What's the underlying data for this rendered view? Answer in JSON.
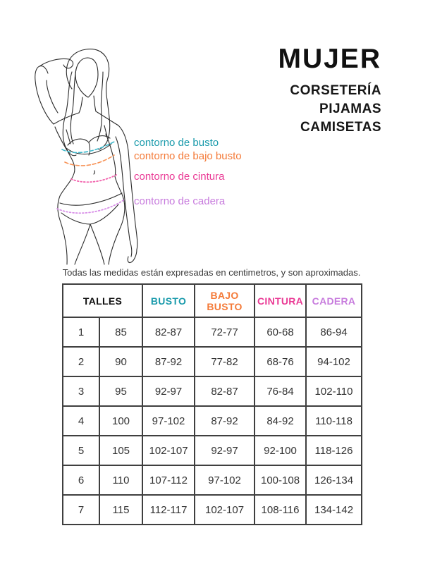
{
  "header": {
    "title": "MUJER",
    "subtitles": [
      "CORSETERÍA",
      "PIJAMAS",
      "CAMISETAS"
    ]
  },
  "figure": {
    "description": "line drawing of woman in underwear with measurement lines",
    "measurements": [
      {
        "label": "contorno de busto",
        "color": "#199aab",
        "line_color": "#3eb8cb"
      },
      {
        "label": "contorno de bajo busto",
        "color": "#f47a38",
        "line_color": "#f79357"
      },
      {
        "label": "contorno de cintura",
        "color": "#ea3a95",
        "line_color": "#f263ad"
      },
      {
        "label": "contorno de cadera",
        "color": "#c77bdd",
        "line_color": "#d88fe8"
      }
    ]
  },
  "note": "Todas las medidas están expresadas en centimetros, y son aproximadas.",
  "table": {
    "headers": [
      {
        "label": "TALLES",
        "color": "#111111",
        "colspan": 2
      },
      {
        "label": "BUSTO",
        "color": "#199aab",
        "colspan": 1
      },
      {
        "label": "BAJO BUSTO",
        "color": "#f47a38",
        "colspan": 1
      },
      {
        "label": "CINTURA",
        "color": "#ea3a95",
        "colspan": 1
      },
      {
        "label": "CADERA",
        "color": "#c77bdd",
        "colspan": 1
      }
    ],
    "rows": [
      [
        "1",
        "85",
        "82-87",
        "72-77",
        "60-68",
        "86-94"
      ],
      [
        "2",
        "90",
        "87-92",
        "77-82",
        "68-76",
        "94-102"
      ],
      [
        "3",
        "95",
        "92-97",
        "82-87",
        "76-84",
        "102-110"
      ],
      [
        "4",
        "100",
        "97-102",
        "87-92",
        "84-92",
        "110-118"
      ],
      [
        "5",
        "105",
        "102-107",
        "92-97",
        "92-100",
        "118-126"
      ],
      [
        "6",
        "110",
        "107-112",
        "97-102",
        "100-108",
        "126-134"
      ],
      [
        "7",
        "115",
        "112-117",
        "102-107",
        "108-116",
        "134-142"
      ]
    ]
  }
}
